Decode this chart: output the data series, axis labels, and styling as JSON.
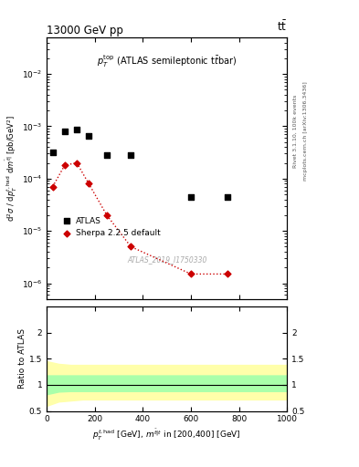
{
  "title_top": "13000 GeV pp",
  "title_right": "tt",
  "annotation_label": "$p_T^{top}$ (ATLAS semileptonic ttbar)",
  "watermark": "ATLAS_2019_I1750330",
  "right_label1": "Rivet 3.1.10, 100k events",
  "right_label2": "mcplots.cern.ch [arXiv:1306.3436]",
  "ylabel_main": "d$^2\\sigma$ / d$p_T^{t,had}$ d$m^{\\bar{t}|}$ [pb/GeV$^2$]",
  "xlabel": "$p_T^{t,had}$ [GeV], $m^{\\bar{t}|t}$ in [200,400] [GeV]",
  "ylabel_ratio": "Ratio to ATLAS",
  "xlim": [
    0,
    1000
  ],
  "ylim_main": [
    5e-07,
    0.05
  ],
  "ylim_ratio": [
    0.5,
    2.5
  ],
  "atlas_x": [
    25,
    75,
    125,
    175,
    250,
    350,
    600,
    750
  ],
  "atlas_y": [
    0.00032,
    0.0008,
    0.00085,
    0.00065,
    0.00028,
    0.00028,
    4.5e-05,
    4.5e-05
  ],
  "sherpa_x": [
    25,
    75,
    125,
    175,
    250,
    350,
    600,
    750
  ],
  "sherpa_y": [
    7e-05,
    0.00018,
    0.0002,
    8e-05,
    2e-05,
    5e-06,
    1.5e-06,
    1.5e-06
  ],
  "atlas_color": "#000000",
  "sherpa_color": "#cc0000",
  "atlas_marker": "s",
  "sherpa_marker": "D",
  "legend_atlas": "ATLAS",
  "legend_sherpa": "Sherpa 2.2.5 default",
  "band_x": [
    0,
    50,
    100,
    150,
    200,
    300,
    400,
    500,
    600,
    700,
    800,
    900,
    1000
  ],
  "green_lo": [
    0.82,
    0.87,
    0.88,
    0.88,
    0.88,
    0.88,
    0.88,
    0.88,
    0.88,
    0.88,
    0.88,
    0.88,
    0.88
  ],
  "green_hi": [
    1.18,
    1.18,
    1.18,
    1.18,
    1.18,
    1.18,
    1.18,
    1.18,
    1.18,
    1.18,
    1.18,
    1.18,
    1.18
  ],
  "yellow_lo": [
    0.6,
    0.68,
    0.7,
    0.72,
    0.72,
    0.72,
    0.72,
    0.72,
    0.72,
    0.72,
    0.72,
    0.72,
    0.72
  ],
  "yellow_hi": [
    1.45,
    1.4,
    1.38,
    1.38,
    1.38,
    1.38,
    1.38,
    1.38,
    1.38,
    1.38,
    1.38,
    1.38,
    1.38
  ]
}
